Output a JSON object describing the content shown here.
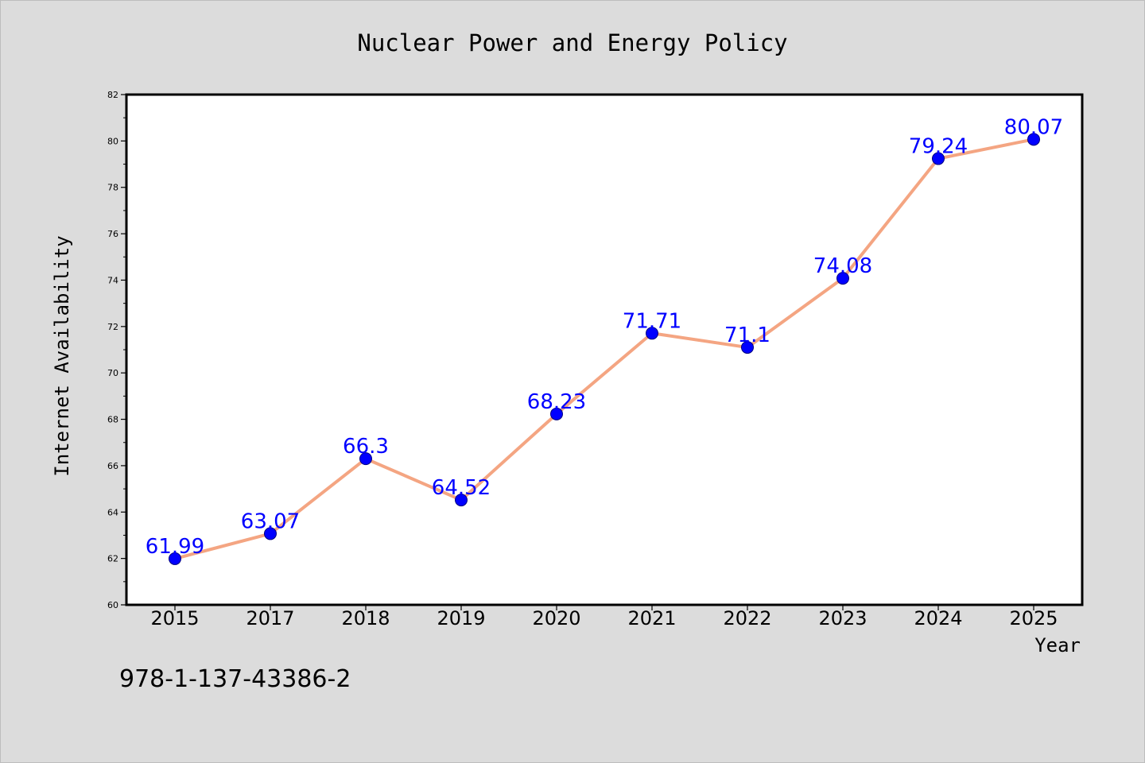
{
  "chart_data": {
    "type": "line",
    "title": "Nuclear Power and Energy Policy",
    "xlabel": "Year",
    "ylabel": "Internet Availability",
    "categories": [
      "2015",
      "2017",
      "2018",
      "2019",
      "2020",
      "2021",
      "2022",
      "2023",
      "2024",
      "2025"
    ],
    "series": [
      {
        "values": [
          61.99,
          63.07,
          66.3,
          64.52,
          68.23,
          71.71,
          71.1,
          74.08,
          79.24,
          80.07
        ],
        "labels": [
          "61.99",
          "63.07",
          "66.3",
          "64.52",
          "68.23",
          "71.71",
          "71.1",
          "74.08",
          "79.24",
          "80.07"
        ]
      }
    ],
    "ylim": [
      60,
      82
    ],
    "yticks": [
      60,
      62,
      64,
      66,
      68,
      70,
      72,
      74,
      76,
      78,
      80,
      82
    ],
    "grid": false,
    "legend": "none",
    "colors": {
      "line": "#f4a582",
      "marker": "#0000ff",
      "data_label": "#0000ff",
      "background": "#dcdcdc",
      "plot_background": "#ffffff"
    }
  },
  "annotation": "978-1-137-43386-2"
}
